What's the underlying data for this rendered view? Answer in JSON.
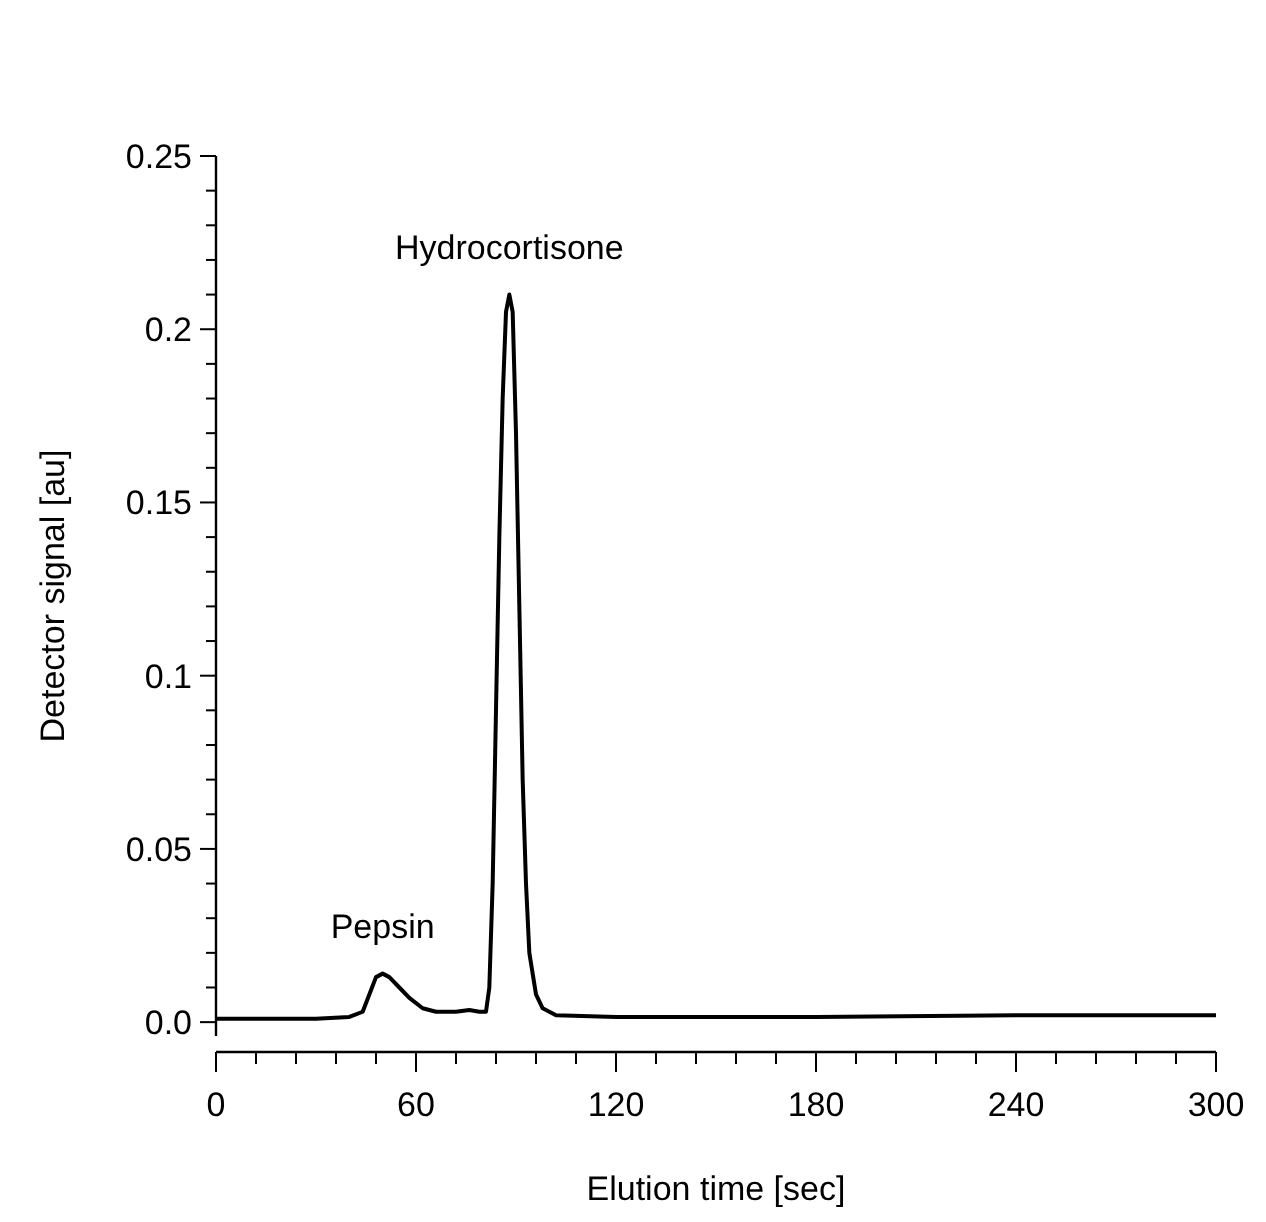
{
  "chart_data": {
    "type": "line",
    "xlabel": "Elution time  [sec]",
    "ylabel": "Detector signal  [au]",
    "x": [
      0,
      30,
      40,
      44,
      46,
      48,
      50,
      52,
      55,
      58,
      62,
      66,
      72,
      76,
      79,
      81,
      82,
      83,
      84,
      85,
      86,
      87,
      88,
      89,
      90,
      91,
      92,
      93,
      94,
      96,
      98,
      102,
      120,
      180,
      240,
      300
    ],
    "series": [
      {
        "color": "#000000",
        "values": [
          0.001,
          0.001,
          0.0015,
          0.003,
          0.008,
          0.013,
          0.014,
          0.013,
          0.01,
          0.007,
          0.004,
          0.003,
          0.003,
          0.0035,
          0.003,
          0.003,
          0.01,
          0.04,
          0.09,
          0.14,
          0.18,
          0.205,
          0.21,
          0.205,
          0.17,
          0.12,
          0.07,
          0.04,
          0.02,
          0.008,
          0.004,
          0.002,
          0.0015,
          0.0015,
          0.002,
          0.002
        ]
      }
    ],
    "xlim": [
      0,
      300
    ],
    "xticks": [
      0,
      {
        "value": 12,
        "label": null
      },
      {
        "value": 24,
        "label": null
      },
      {
        "value": 36,
        "label": null
      },
      {
        "value": 48,
        "label": null
      },
      60,
      {
        "value": 72,
        "label": null
      },
      {
        "value": 84,
        "label": null
      },
      {
        "value": 96,
        "label": null
      },
      {
        "value": 108,
        "label": null
      },
      120,
      {
        "value": 132,
        "label": null
      },
      {
        "value": 144,
        "label": null
      },
      {
        "value": 156,
        "label": null
      },
      {
        "value": 168,
        "label": null
      },
      180,
      {
        "value": 192,
        "label": null
      },
      {
        "value": 204,
        "label": null
      },
      {
        "value": 216,
        "label": null
      },
      {
        "value": 228,
        "label": null
      },
      240,
      {
        "value": 252,
        "label": null
      },
      {
        "value": 264,
        "label": null
      },
      {
        "value": 276,
        "label": null
      },
      {
        "value": 288,
        "label": null
      },
      300
    ],
    "ylim": [
      -0.004,
      0.25
    ],
    "yticks": [
      {
        "value": 0,
        "label": "0.0"
      },
      {
        "value": 0.01,
        "label": null
      },
      {
        "value": 0.02,
        "label": null
      },
      {
        "value": 0.03,
        "label": null
      },
      {
        "value": 0.04,
        "label": null
      },
      0.05,
      {
        "value": 0.06,
        "label": null
      },
      {
        "value": 0.07,
        "label": null
      },
      {
        "value": 0.08,
        "label": null
      },
      {
        "value": 0.09,
        "label": null
      },
      0.1,
      {
        "value": 0.11,
        "label": null
      },
      {
        "value": 0.12,
        "label": null
      },
      {
        "value": 0.13,
        "label": null
      },
      {
        "value": 0.14,
        "label": null
      },
      0.15,
      {
        "value": 0.16,
        "label": null
      },
      {
        "value": 0.17,
        "label": null
      },
      {
        "value": 0.18,
        "label": null
      },
      {
        "value": 0.19,
        "label": null
      },
      0.2,
      {
        "value": 0.21,
        "label": null
      },
      {
        "value": 0.22,
        "label": null
      },
      {
        "value": 0.23,
        "label": null
      },
      {
        "value": 0.24,
        "label": null
      },
      0.25
    ],
    "annotations": [
      {
        "text": "Pepsin",
        "x": 50,
        "y": 0.014
      },
      {
        "text": "Hydrocortisone",
        "x": 88,
        "y": 0.21
      }
    ],
    "marker": "none",
    "line_style": "solid"
  }
}
